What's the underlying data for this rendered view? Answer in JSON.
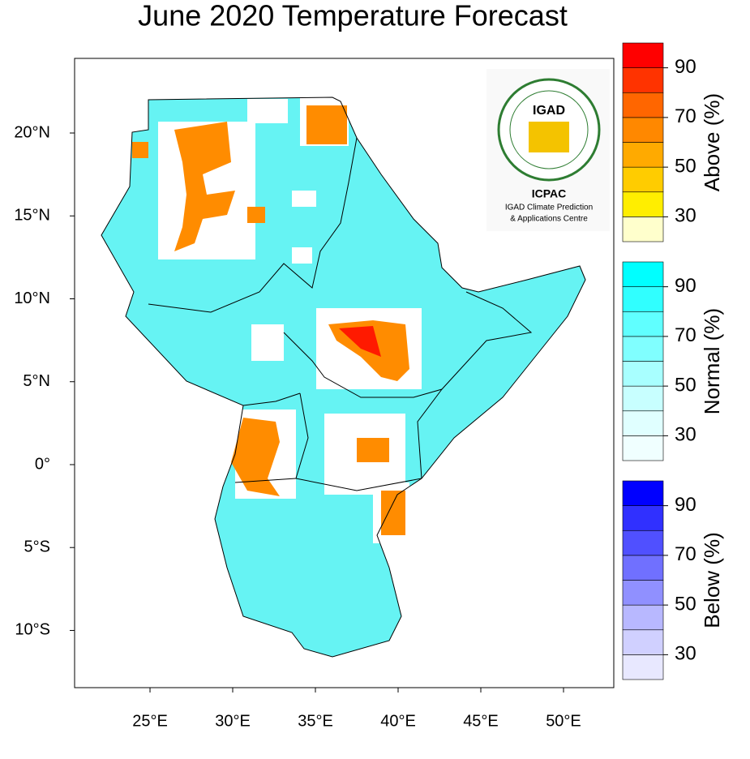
{
  "title": "June 2020 Temperature Forecast",
  "map": {
    "lon_range": [
      20.44,
      53.04
    ],
    "lat_range": [
      -13.45,
      24.5
    ],
    "lon_ticks": [
      {
        "value": 25,
        "label": "25°E"
      },
      {
        "value": 30,
        "label": "30°E"
      },
      {
        "value": 35,
        "label": "35°E"
      },
      {
        "value": 40,
        "label": "40°E"
      },
      {
        "value": 45,
        "label": "45°E"
      },
      {
        "value": 50,
        "label": "50°E"
      }
    ],
    "lat_ticks": [
      {
        "value": 20,
        "label": "20°N"
      },
      {
        "value": 15,
        "label": "15°N"
      },
      {
        "value": 10,
        "label": "10°N"
      },
      {
        "value": 5,
        "label": "5°N"
      },
      {
        "value": 0,
        "label": "0°"
      },
      {
        "value": -5,
        "label": "5°S"
      },
      {
        "value": -10,
        "label": "10°S"
      }
    ]
  },
  "legends": [
    {
      "label": "Above (%)",
      "range": [
        20,
        100
      ],
      "ticks": [
        30,
        50,
        70,
        90
      ],
      "colors": [
        "#ffffcc",
        "#ffee00",
        "#ffcc00",
        "#ffaa00",
        "#ff8800",
        "#ff6600",
        "#ff3300",
        "#ff0000"
      ]
    },
    {
      "label": "Normal (%)",
      "range": [
        20,
        100
      ],
      "ticks": [
        30,
        50,
        70,
        90
      ],
      "colors": [
        "#f0ffff",
        "#e0ffff",
        "#c8ffff",
        "#a8ffff",
        "#80ffff",
        "#60ffff",
        "#30ffff",
        "#00ffff"
      ]
    },
    {
      "label": "Below (%)",
      "range": [
        20,
        100
      ],
      "ticks": [
        30,
        50,
        70,
        90
      ],
      "colors": [
        "#e8e8ff",
        "#d0d0ff",
        "#b8b8ff",
        "#9090ff",
        "#7070ff",
        "#5050ff",
        "#3030ff",
        "#0000ff"
      ]
    }
  ],
  "logo": {
    "acronym": "IGAD",
    "name": "ICPAC",
    "subtitle": [
      "IGAD Climate Prediction",
      "& Applications Centre"
    ]
  }
}
